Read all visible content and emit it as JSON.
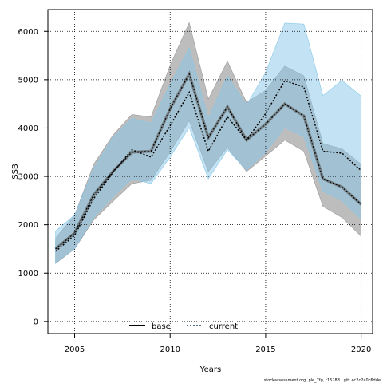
{
  "chart_data": {
    "type": "line",
    "xlabel": "Years",
    "ylabel": "SSB",
    "xlim": [
      2003.6,
      2020.6
    ],
    "ylim": [
      -250,
      6450
    ],
    "x_ticks": [
      2005,
      2010,
      2015,
      2020
    ],
    "y_ticks": [
      0,
      1000,
      2000,
      3000,
      4000,
      5000,
      6000
    ],
    "grid": true,
    "legend_position": "bottom-center",
    "x": [
      2004,
      2005,
      2006,
      2007,
      2008,
      2009,
      2010,
      2011,
      2012,
      2013,
      2014,
      2015,
      2016,
      2017,
      2018,
      2019,
      2020
    ],
    "series": [
      {
        "name": "base",
        "line_style": "solid",
        "line_color": "#000000",
        "band_color": "#999999",
        "values": [
          1500,
          1830,
          2620,
          3100,
          3500,
          3520,
          4400,
          5120,
          3800,
          4440,
          3750,
          4080,
          4500,
          4250,
          2950,
          2780,
          2420
        ],
        "upper": [
          1720,
          2200,
          3250,
          3850,
          4280,
          4230,
          5300,
          6180,
          4600,
          5380,
          4530,
          4780,
          5280,
          5080,
          3680,
          3570,
          3250
        ],
        "lower": [
          1200,
          1500,
          2100,
          2480,
          2850,
          2920,
          3500,
          4150,
          3100,
          3600,
          3100,
          3420,
          3750,
          3520,
          2380,
          2150,
          1760
        ]
      },
      {
        "name": "current",
        "line_style": "dotted",
        "line_color": "#1a3a6a",
        "band_color": "#87c8ea",
        "values": [
          1450,
          1780,
          2540,
          3080,
          3550,
          3400,
          4050,
          4740,
          3520,
          4230,
          3750,
          4300,
          4980,
          4850,
          3520,
          3480,
          3120
        ],
        "upper": [
          1870,
          2200,
          3170,
          3800,
          4200,
          4100,
          4900,
          5660,
          4200,
          5080,
          4480,
          5150,
          6170,
          6150,
          4670,
          4990,
          4660
        ],
        "lower": [
          1220,
          1500,
          2150,
          2580,
          2950,
          2850,
          3400,
          4010,
          2950,
          3550,
          3130,
          3500,
          4010,
          3820,
          2690,
          2500,
          2120
        ]
      }
    ]
  },
  "footer": {
    "text": "stockassessment.org, ple_7fg, r15288 , git: ec2c2a0c6dde"
  }
}
